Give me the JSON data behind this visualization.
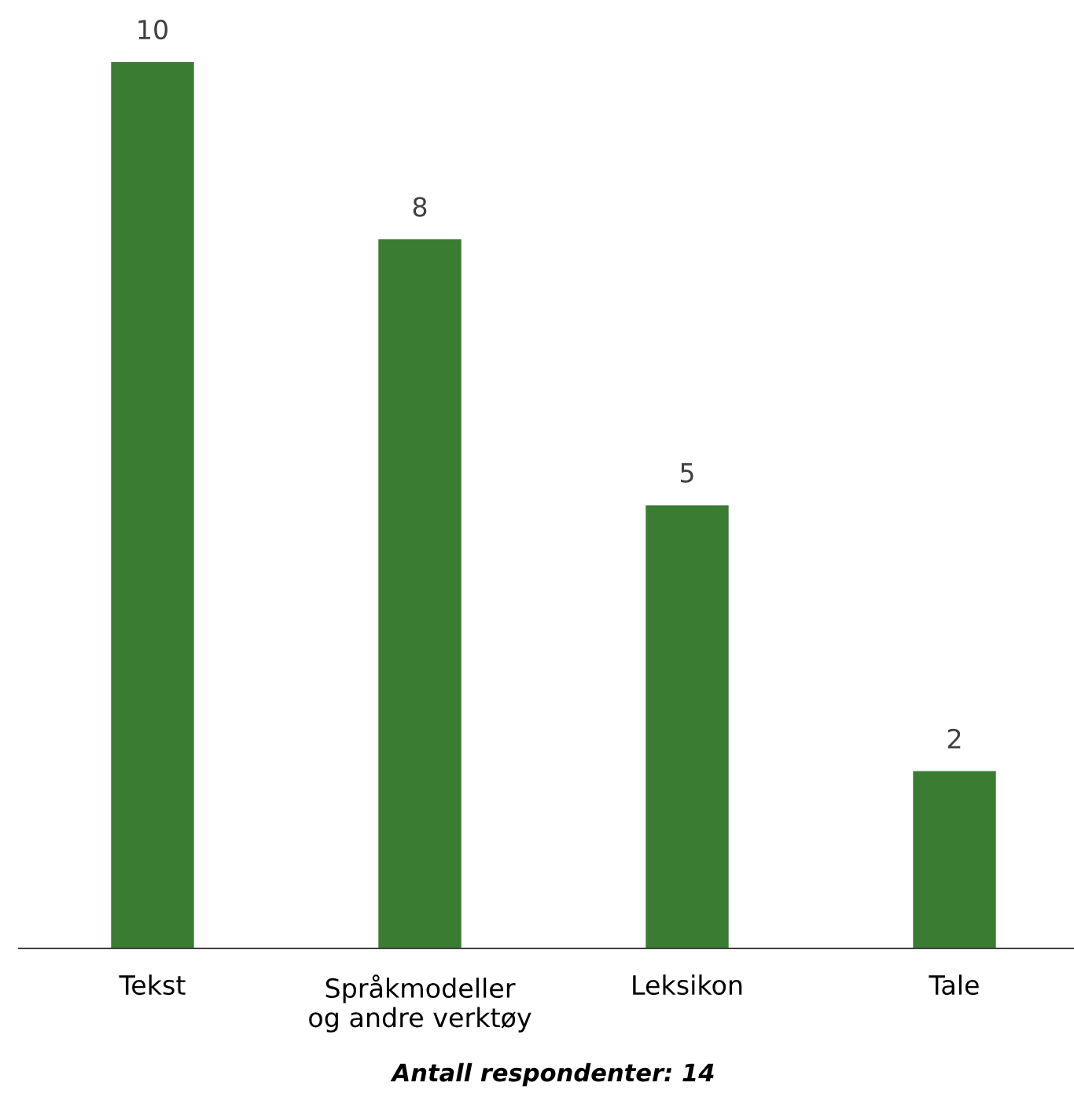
{
  "chart_data": {
    "type": "bar",
    "categories": [
      "Tekst",
      "Språkmodeller\nog andre verktøy",
      "Leksikon",
      "Tale"
    ],
    "values": [
      10,
      8,
      5,
      2
    ],
    "color": "#3a7d32",
    "data_labels": true,
    "xlabel": "Antall respondenter: 14",
    "grid": false,
    "legend": false
  }
}
